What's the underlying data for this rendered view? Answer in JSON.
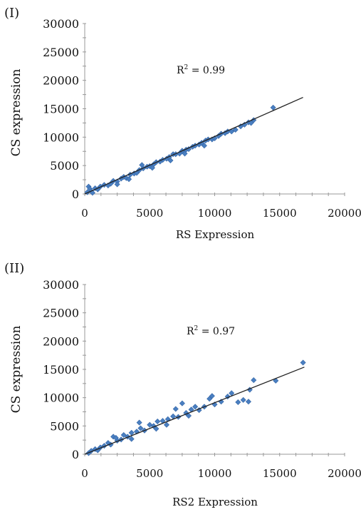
{
  "chart_data": [
    {
      "type": "scatter",
      "panel_label": "(I)",
      "xlabel": "RS Expression",
      "ylabel": "CS expression",
      "annotation": {
        "r2_prefix": "R",
        "r2_exp": "2",
        "r2_value": " = 0.99"
      },
      "xlim": [
        0,
        20000
      ],
      "ylim": [
        0,
        30000
      ],
      "x_ticks": [
        "0",
        "5000",
        "10000",
        "15000",
        "20000"
      ],
      "y_ticks": [
        "0",
        "5000",
        "10000",
        "15000",
        "20000",
        "25000",
        "30000"
      ],
      "marker_color": "#4a7fc1",
      "trendline": {
        "x": [
          0,
          16800
        ],
        "y": [
          0,
          17000
        ],
        "color": "#222222"
      },
      "series": [
        {
          "points": [
            [
              300,
              1300
            ],
            [
              400,
              900
            ],
            [
              500,
              500
            ],
            [
              200,
              300
            ],
            [
              600,
              200
            ],
            [
              800,
              1000
            ],
            [
              1000,
              800
            ],
            [
              1200,
              1300
            ],
            [
              1500,
              1600
            ],
            [
              1800,
              1500
            ],
            [
              2000,
              1800
            ],
            [
              2200,
              2300
            ],
            [
              2500,
              2200
            ],
            [
              2800,
              2700
            ],
            [
              3000,
              3000
            ],
            [
              3200,
              2800
            ],
            [
              3500,
              3400
            ],
            [
              3800,
              3600
            ],
            [
              4000,
              3700
            ],
            [
              4200,
              4200
            ],
            [
              4500,
              4500
            ],
            [
              4800,
              4800
            ],
            [
              5000,
              4900
            ],
            [
              5300,
              5200
            ],
            [
              5500,
              5600
            ],
            [
              5800,
              5700
            ],
            [
              6000,
              6000
            ],
            [
              6300,
              6200
            ],
            [
              6500,
              6500
            ],
            [
              6800,
              7000
            ],
            [
              7000,
              7000
            ],
            [
              7300,
              7100
            ],
            [
              7500,
              7600
            ],
            [
              7800,
              7800
            ],
            [
              8000,
              7900
            ],
            [
              8300,
              8300
            ],
            [
              8500,
              8500
            ],
            [
              8800,
              8700
            ],
            [
              9000,
              9000
            ],
            [
              9300,
              9400
            ],
            [
              9500,
              9600
            ],
            [
              9800,
              9600
            ],
            [
              10000,
              9800
            ],
            [
              10300,
              10200
            ],
            [
              10500,
              10600
            ],
            [
              10800,
              10700
            ],
            [
              11000,
              11000
            ],
            [
              11300,
              11000
            ],
            [
              11600,
              11300
            ],
            [
              12000,
              11900
            ],
            [
              12300,
              12200
            ],
            [
              12600,
              12600
            ],
            [
              13000,
              13000
            ],
            [
              12800,
              12500
            ],
            [
              14500,
              15200
            ],
            [
              3400,
              2600
            ],
            [
              5200,
              4600
            ],
            [
              6600,
              5900
            ],
            [
              7700,
              7100
            ],
            [
              9200,
              8500
            ],
            [
              4400,
              5100
            ],
            [
              2500,
              1700
            ]
          ]
        }
      ]
    },
    {
      "type": "scatter",
      "panel_label": "(II)",
      "xlabel": "RS2 Expression",
      "ylabel": "CS expression",
      "annotation": {
        "r2_prefix": "R",
        "r2_exp": "2",
        "r2_value": " = 0.97"
      },
      "xlim": [
        0,
        20000
      ],
      "ylim": [
        0,
        30000
      ],
      "x_ticks": [
        "0",
        "5000",
        "10000",
        "15000",
        "20000"
      ],
      "y_ticks": [
        "0",
        "5000",
        "10000",
        "15000",
        "20000",
        "25000",
        "30000"
      ],
      "marker_color": "#4a7fc1",
      "trendline": {
        "x": [
          0,
          16900
        ],
        "y": [
          0,
          15400
        ],
        "color": "#222222"
      },
      "series": [
        {
          "points": [
            [
              300,
              200
            ],
            [
              500,
              600
            ],
            [
              800,
              900
            ],
            [
              1000,
              700
            ],
            [
              1200,
              1200
            ],
            [
              1500,
              1500
            ],
            [
              1800,
              2000
            ],
            [
              2000,
              1700
            ],
            [
              2200,
              3100
            ],
            [
              2500,
              2400
            ],
            [
              2800,
              2600
            ],
            [
              3000,
              3400
            ],
            [
              3300,
              3100
            ],
            [
              3600,
              3800
            ],
            [
              4000,
              4000
            ],
            [
              4300,
              4600
            ],
            [
              4600,
              4200
            ],
            [
              5000,
              5200
            ],
            [
              5300,
              5000
            ],
            [
              5600,
              5800
            ],
            [
              6000,
              5900
            ],
            [
              6400,
              6200
            ],
            [
              6800,
              6700
            ],
            [
              7200,
              6600
            ],
            [
              7500,
              9000
            ],
            [
              7800,
              7300
            ],
            [
              8200,
              7900
            ],
            [
              8500,
              8400
            ],
            [
              8800,
              7800
            ],
            [
              9200,
              8400
            ],
            [
              9600,
              9800
            ],
            [
              10000,
              8800
            ],
            [
              10500,
              9300
            ],
            [
              11000,
              10200
            ],
            [
              11300,
              10800
            ],
            [
              11800,
              9200
            ],
            [
              12200,
              9600
            ],
            [
              12600,
              9300
            ],
            [
              12700,
              11400
            ],
            [
              13000,
              13100
            ],
            [
              14700,
              13000
            ],
            [
              16800,
              16200
            ],
            [
              3600,
              2700
            ],
            [
              5500,
              4500
            ],
            [
              6300,
              5200
            ],
            [
              4200,
              5600
            ],
            [
              8000,
              6800
            ],
            [
              9800,
              10300
            ],
            [
              2400,
              2900
            ],
            [
              7000,
              8000
            ]
          ]
        }
      ]
    }
  ]
}
